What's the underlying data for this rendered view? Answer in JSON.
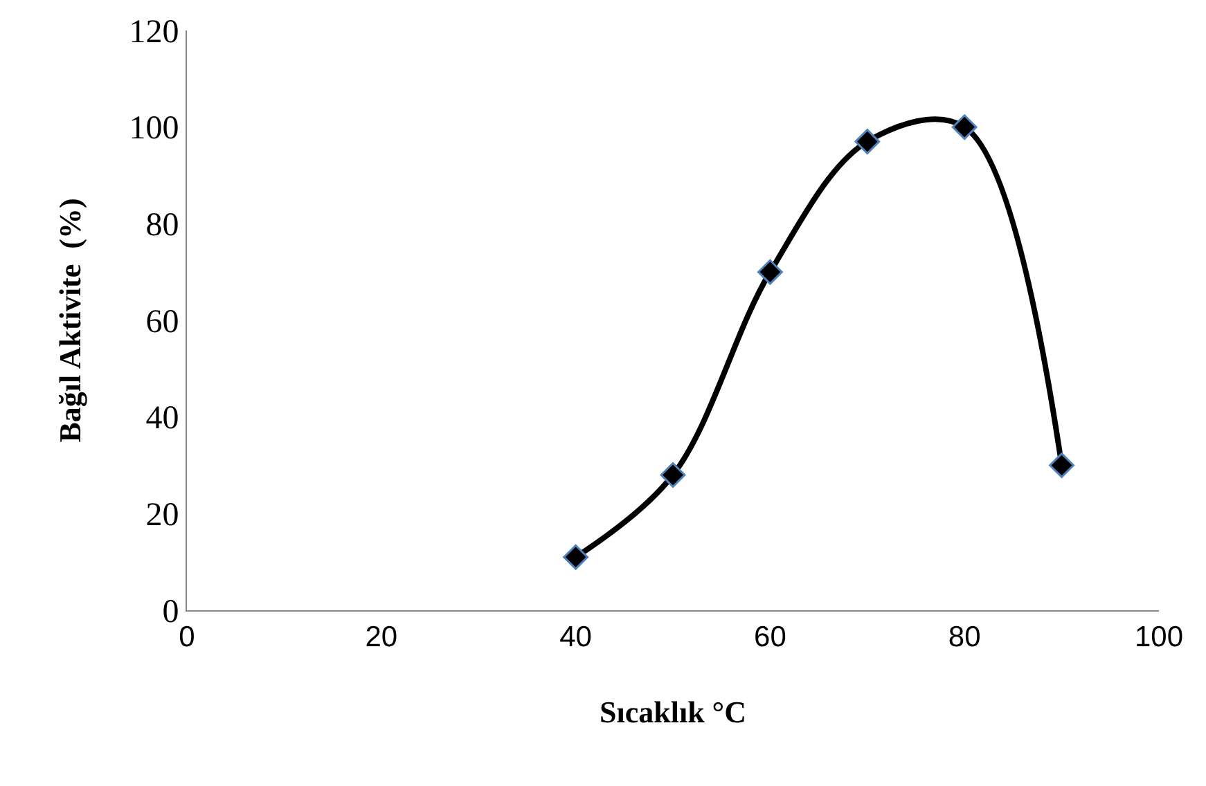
{
  "chart_data": {
    "type": "line",
    "xlabel": "Sıcaklık °C",
    "ylabel": "Bağıl Aktivite  (%)",
    "x": [
      40,
      50,
      60,
      70,
      80,
      90
    ],
    "series": [
      {
        "color": "#000000",
        "values": [
          11,
          28,
          70,
          97,
          100,
          30
        ]
      }
    ],
    "xlim": [
      0,
      100
    ],
    "xticks": [
      0,
      20,
      40,
      60,
      80,
      100
    ],
    "ylim": [
      0,
      120
    ],
    "yticks": [
      0,
      20,
      40,
      60,
      80,
      100,
      120
    ],
    "grid": false,
    "legend": false,
    "marker": "diamond",
    "line_style": "solid"
  }
}
